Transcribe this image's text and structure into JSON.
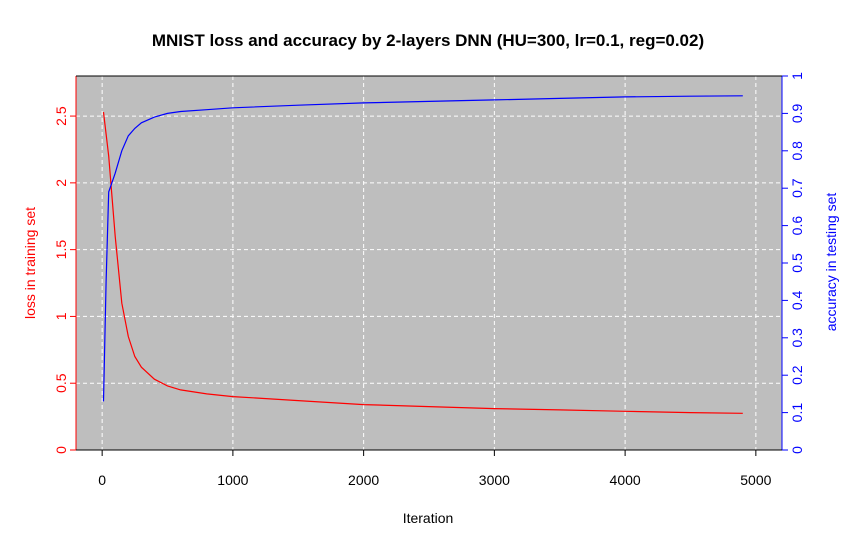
{
  "colors": {
    "panel": "#bebebe",
    "grid": "#ffffff",
    "loss": "#ff0000",
    "accuracy": "#0000ff",
    "axis": "#000000"
  },
  "chart_data": {
    "type": "line",
    "title": "MNIST loss and accuracy by 2-layers DNN (HU=300, lr=0.1, reg=0.02)",
    "xlabel": "Iteration",
    "ylabel_left": "loss in training set",
    "ylabel_right": "accuracy in testing set",
    "xlim": [
      -200,
      5200
    ],
    "ylim_left": [
      0,
      2.8
    ],
    "ylim_right": [
      0,
      1
    ],
    "x_ticks": [
      0,
      1000,
      2000,
      3000,
      4000,
      5000
    ],
    "y_left_ticks": [
      0,
      0.5,
      1,
      1.5,
      2,
      2.5
    ],
    "y_right_ticks": [
      0,
      0.1,
      0.2,
      0.3,
      0.4,
      0.5,
      0.6,
      0.7,
      0.8,
      0.9,
      1
    ],
    "grid": true,
    "series": [
      {
        "name": "loss in training set",
        "axis": "left",
        "color": "#ff0000",
        "x": [
          10,
          50,
          100,
          150,
          200,
          250,
          300,
          400,
          500,
          600,
          800,
          1000,
          1500,
          2000,
          2500,
          3000,
          3500,
          4000,
          4500,
          4900
        ],
        "y": [
          2.53,
          2.2,
          1.6,
          1.1,
          0.85,
          0.7,
          0.62,
          0.53,
          0.48,
          0.45,
          0.42,
          0.4,
          0.37,
          0.34,
          0.325,
          0.31,
          0.3,
          0.29,
          0.28,
          0.275
        ]
      },
      {
        "name": "accuracy in testing set",
        "axis": "right",
        "color": "#0000ff",
        "x": [
          10,
          30,
          50,
          70,
          100,
          150,
          200,
          250,
          300,
          400,
          500,
          600,
          800,
          1000,
          1500,
          2000,
          2500,
          3000,
          3500,
          4000,
          4500,
          4900
        ],
        "y": [
          0.13,
          0.45,
          0.69,
          0.71,
          0.74,
          0.8,
          0.84,
          0.86,
          0.875,
          0.89,
          0.9,
          0.905,
          0.91,
          0.915,
          0.922,
          0.928,
          0.932,
          0.936,
          0.94,
          0.944,
          0.946,
          0.947
        ]
      }
    ]
  }
}
